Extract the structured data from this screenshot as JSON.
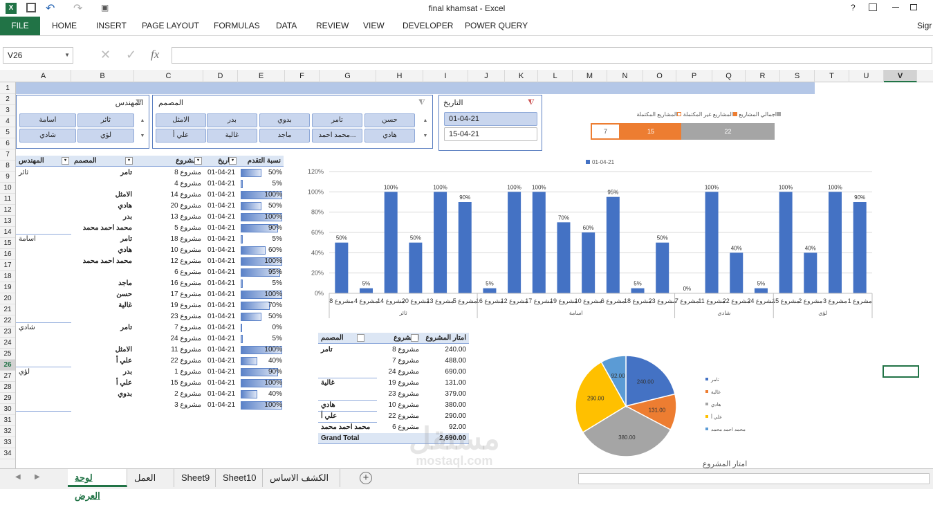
{
  "window": {
    "title": "final khamsat - Excel",
    "sign": "Sigr"
  },
  "ribbon": {
    "tabs": [
      "FILE",
      "HOME",
      "INSERT",
      "PAGE LAYOUT",
      "FORMULAS",
      "DATA",
      "REVIEW",
      "VIEW",
      "DEVELOPER",
      "POWER QUERY"
    ]
  },
  "formula": {
    "name_box": "V26",
    "fx": "fx"
  },
  "columns": [
    "A",
    "B",
    "C",
    "D",
    "E",
    "F",
    "G",
    "H",
    "I",
    "J",
    "K",
    "L",
    "M",
    "N",
    "O",
    "P",
    "Q",
    "R",
    "S",
    "T",
    "U",
    "V"
  ],
  "rows": [
    "1",
    "2",
    "3",
    "4",
    "5",
    "6",
    "7",
    "8",
    "9",
    "10",
    "11",
    "12",
    "13",
    "14",
    "15",
    "16",
    "17",
    "18",
    "19",
    "20",
    "21",
    "22",
    "23",
    "24",
    "25",
    "26",
    "27",
    "28",
    "29",
    "30",
    "31",
    "32",
    "33",
    "34"
  ],
  "slicers": {
    "engineer": {
      "title": "المهندس",
      "items": [
        "ثائر",
        "اسامة",
        "لؤي",
        "شادي"
      ]
    },
    "designer": {
      "title": "المصمم",
      "items": [
        "حسن",
        "تامر",
        "بدوي",
        "بدر",
        "الامثل",
        "هادي",
        "محمد احمد...",
        "ماجد",
        "غالية",
        "علي أ"
      ]
    },
    "date": {
      "title": "التاريخ",
      "items": [
        "01-04-21",
        "15-04-21"
      ]
    }
  },
  "kpi": {
    "legend": [
      "اجمالي المشاريع",
      "المشاريع غير المكتملة",
      "المشاريع المكتملة"
    ],
    "complete": "7",
    "incomplete": "15",
    "total": "22"
  },
  "pivot": {
    "headers": [
      "المهندس",
      "المصمم",
      "المشروع",
      "التاريخ",
      "نسبة التقدم"
    ],
    "rows": [
      {
        "eng": "ثائر",
        "des": "تامر",
        "proj": "مشروع 8",
        "date": "01-04-21",
        "pct": "50%",
        "v": 0.5
      },
      {
        "eng": "",
        "des": "",
        "proj": "مشروع 4",
        "date": "01-04-21",
        "pct": "5%",
        "v": 0.05
      },
      {
        "eng": "",
        "des": "الامثل",
        "proj": "مشروع 14",
        "date": "01-04-21",
        "pct": "100%",
        "v": 1
      },
      {
        "eng": "",
        "des": "هادي",
        "proj": "مشروع 20",
        "date": "01-04-21",
        "pct": "50%",
        "v": 0.5
      },
      {
        "eng": "",
        "des": "بدر",
        "proj": "مشروع 13",
        "date": "01-04-21",
        "pct": "100%",
        "v": 1
      },
      {
        "eng": "",
        "des": "محمد احمد محمد",
        "proj": "مشروع 5",
        "date": "01-04-21",
        "pct": "90%",
        "v": 0.9
      },
      {
        "eng": "اسامة",
        "des": "تامر",
        "proj": "مشروع 18",
        "date": "01-04-21",
        "pct": "5%",
        "v": 0.05
      },
      {
        "eng": "",
        "des": "هادي",
        "proj": "مشروع 10",
        "date": "01-04-21",
        "pct": "60%",
        "v": 0.6
      },
      {
        "eng": "",
        "des": "محمد احمد محمد",
        "proj": "مشروع 12",
        "date": "01-04-21",
        "pct": "100%",
        "v": 1
      },
      {
        "eng": "",
        "des": "",
        "proj": "مشروع 6",
        "date": "01-04-21",
        "pct": "95%",
        "v": 0.95
      },
      {
        "eng": "",
        "des": "ماجد",
        "proj": "مشروع 16",
        "date": "01-04-21",
        "pct": "5%",
        "v": 0.05
      },
      {
        "eng": "",
        "des": "حسن",
        "proj": "مشروع 17",
        "date": "01-04-21",
        "pct": "100%",
        "v": 1
      },
      {
        "eng": "",
        "des": "غالية",
        "proj": "مشروع 19",
        "date": "01-04-21",
        "pct": "70%",
        "v": 0.7
      },
      {
        "eng": "",
        "des": "",
        "proj": "مشروع 23",
        "date": "01-04-21",
        "pct": "50%",
        "v": 0.5
      },
      {
        "eng": "شادي",
        "des": "تامر",
        "proj": "مشروع 7",
        "date": "01-04-21",
        "pct": "0%",
        "v": 0
      },
      {
        "eng": "",
        "des": "",
        "proj": "مشروع 24",
        "date": "01-04-21",
        "pct": "5%",
        "v": 0.05
      },
      {
        "eng": "",
        "des": "الامثل",
        "proj": "مشروع 11",
        "date": "01-04-21",
        "pct": "100%",
        "v": 1
      },
      {
        "eng": "",
        "des": "علي أ",
        "proj": "مشروع 22",
        "date": "01-04-21",
        "pct": "40%",
        "v": 0.4
      },
      {
        "eng": "لؤي",
        "des": "بدر",
        "proj": "مشروع 1",
        "date": "01-04-21",
        "pct": "90%",
        "v": 0.9
      },
      {
        "eng": "",
        "des": "علي أ",
        "proj": "مشروع 15",
        "date": "01-04-21",
        "pct": "100%",
        "v": 1
      },
      {
        "eng": "",
        "des": "بدوي",
        "proj": "مشروع 2",
        "date": "01-04-21",
        "pct": "40%",
        "v": 0.4
      },
      {
        "eng": "",
        "des": "",
        "proj": "مشروع 3",
        "date": "01-04-21",
        "pct": "100%",
        "v": 1
      }
    ]
  },
  "pivot2": {
    "headers": [
      "المصمم",
      "المشروع",
      "امتار المشروع"
    ],
    "rows": [
      {
        "des": "تامر",
        "proj": "مشروع 8",
        "val": "240.00"
      },
      {
        "des": "",
        "proj": "مشروع 7",
        "val": "488.00"
      },
      {
        "des": "",
        "proj": "مشروع 24",
        "val": "690.00"
      },
      {
        "des": "غالية",
        "proj": "مشروع 19",
        "val": "131.00"
      },
      {
        "des": "",
        "proj": "مشروع 23",
        "val": "379.00"
      },
      {
        "des": "هادي",
        "proj": "مشروع 10",
        "val": "380.00"
      },
      {
        "des": "علي أ",
        "proj": "مشروع 22",
        "val": "290.00"
      },
      {
        "des": "محمد احمد محمد",
        "proj": "مشروع 6",
        "val": "92.00"
      }
    ],
    "total_label": "Grand Total",
    "total": "2,690.00"
  },
  "chart_data": [
    {
      "type": "bar",
      "series": [
        {
          "name": "01-04-21",
          "values": [
            0.5,
            0.05,
            1,
            0.5,
            1,
            0.9,
            0.05,
            1,
            1,
            0.7,
            0.6,
            0.95,
            0.05,
            0.5,
            0,
            1,
            0.4,
            0.05,
            1,
            0.4,
            1,
            0.9
          ]
        }
      ],
      "categories": [
        "مشروع 8",
        "مشروع 4",
        "مشروع 14",
        "مشروع 20",
        "مشروع 13",
        "مشروع 5",
        "مشروع 16",
        "مشروع 12",
        "مشروع 17",
        "مشروع 19",
        "مشروع 10",
        "مشروع 6",
        "مشروع 18",
        "مشروع 23",
        "مشروع 7",
        "مشروع 11",
        "مشروع 22",
        "مشروع 24",
        "مشروع 15",
        "مشروع 2",
        "مشروع 3",
        "مشروع 1"
      ],
      "labels": [
        "50%",
        "5%",
        "100%",
        "50%",
        "100%",
        "90%",
        "5%",
        "100%",
        "100%",
        "70%",
        "60%",
        "95%",
        "5%",
        "50%",
        "0%",
        "100%",
        "40%",
        "5%",
        "100%",
        "40%",
        "100%",
        "90%"
      ],
      "groups": [
        {
          "name": "ثائر",
          "count": 6
        },
        {
          "name": "اسامة",
          "count": 8
        },
        {
          "name": "شادي",
          "count": 4
        },
        {
          "name": "لؤي",
          "count": 4
        }
      ],
      "yticks": [
        "0%",
        "20%",
        "40%",
        "60%",
        "80%",
        "100%",
        "120%"
      ],
      "ylim": [
        0,
        1.2
      ],
      "legend": "top"
    },
    {
      "type": "pie",
      "title": "امتار المشروع",
      "slices": [
        {
          "name": "تامر",
          "value": 240,
          "label": "240.00",
          "color": "#4472c4"
        },
        {
          "name": "غالية",
          "value": 131,
          "label": "131.00",
          "color": "#ed7d31"
        },
        {
          "name": "هادي",
          "value": 380,
          "label": "380.00",
          "color": "#a5a5a5"
        },
        {
          "name": "علي أ",
          "value": 290,
          "label": "290.00",
          "color": "#ffc000"
        },
        {
          "name": "محمد احمد محمد",
          "value": 92,
          "label": "92.00",
          "color": "#5b9bd5"
        }
      ]
    }
  ],
  "sheets": [
    "لوحة العرض",
    "العمل",
    "Sheet9",
    "Sheet10",
    "الكشف الاساس"
  ],
  "watermark": {
    "ar": "مستقل",
    "en": "mostaql.com"
  }
}
